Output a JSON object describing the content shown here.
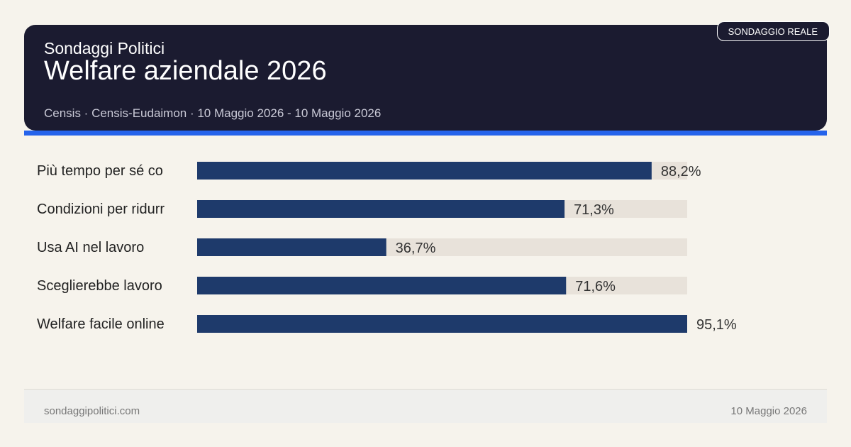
{
  "header": {
    "brand": "Sondaggi Politici",
    "title": "Welfare aziendale 2026",
    "meta": "Censis · Censis-Eudaimon · 10 Maggio 2026 - 10 Maggio 2026",
    "badge": "SONDAGGIO REALE"
  },
  "colors": {
    "header_bg": "#1b1b30",
    "accent": "#2563eb",
    "bar": "#1e3a6b",
    "track": "#e8e2da",
    "page_bg": "#f6f3ec"
  },
  "chart_data": {
    "type": "bar",
    "orientation": "horizontal",
    "categories": [
      "Più tempo per sé co",
      "Condizioni per ridurr",
      "Usa AI nel lavoro",
      "Sceglierebbe lavoro",
      "Welfare facile online"
    ],
    "values": [
      88.2,
      71.3,
      36.7,
      71.6,
      95.1
    ],
    "value_labels": [
      "88,2%",
      "71,3%",
      "36,7%",
      "71,6%",
      "95,1%"
    ],
    "xlim": [
      0,
      95.1
    ],
    "grid": false,
    "legend": "none"
  },
  "footer": {
    "site": "sondaggipolitici.com",
    "date": "10 Maggio 2026"
  }
}
